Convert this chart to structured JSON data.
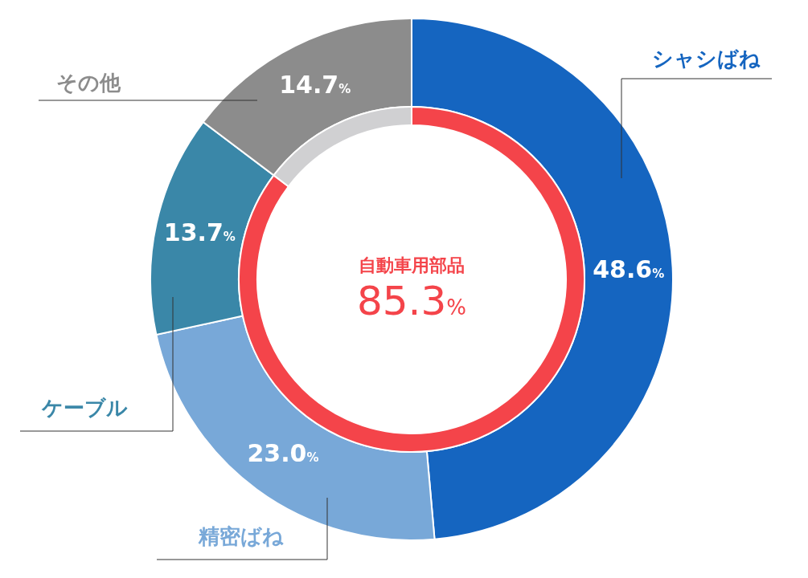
{
  "chart_data": [
    {
      "type": "donut",
      "categories": [
        "シャシばね",
        "精密ばね",
        "ケーブル",
        "その他"
      ],
      "values": [
        48.6,
        23.0,
        13.7,
        14.7
      ],
      "colors": [
        "#1565c0",
        "#78a8d8",
        "#3a87a8",
        "#8c8c8c"
      ],
      "value_labels": [
        "48.6%",
        "23.0%",
        "13.7%",
        "14.7%"
      ]
    },
    {
      "type": "donut",
      "categories": [
        "自動車用部品",
        null
      ],
      "values": [
        85.3,
        14.7
      ],
      "colors": [
        "#f4444a",
        "#d0d0d2"
      ],
      "value_labels": [
        "85.3%",
        null
      ]
    }
  ]
}
